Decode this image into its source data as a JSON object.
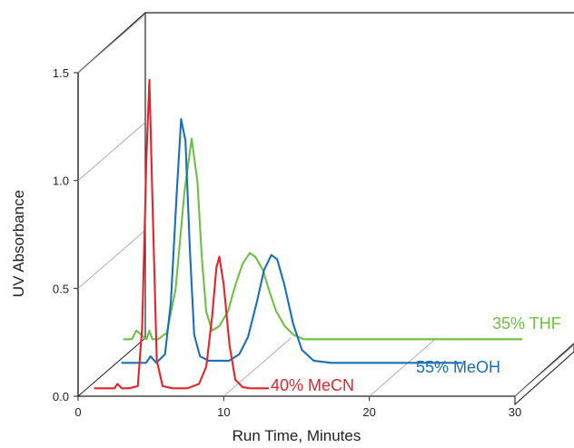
{
  "chart_data": {
    "type": "line",
    "subtype": "3d-offset-chromatograms",
    "xlabel": "Run Time, Minutes",
    "ylabel": "UV Absorbance",
    "xlim": [
      0,
      30
    ],
    "ylim": [
      0,
      1.5
    ],
    "xticks": [
      "0",
      "10",
      "20",
      "30"
    ],
    "yticks": [
      "0.0",
      "0.5",
      "1.0",
      "1.5"
    ],
    "grid": true,
    "series": [
      {
        "name": "40% MeCN",
        "color": "#e3242b",
        "x": [
          0.6,
          1.0,
          2.0,
          2.2,
          2.5,
          3.0,
          3.6,
          3.9,
          4.2,
          4.4,
          4.6,
          4.9,
          5.3,
          6.0,
          7.0,
          7.8,
          8.3,
          8.7,
          9.0,
          9.2,
          9.5,
          9.9,
          10.3,
          10.8,
          11.3,
          12.0,
          12.6
        ],
        "y": [
          0.02,
          0.02,
          0.02,
          0.04,
          0.02,
          0.02,
          0.03,
          0.3,
          1.1,
          1.45,
          0.9,
          0.15,
          0.03,
          0.02,
          0.02,
          0.04,
          0.12,
          0.35,
          0.58,
          0.63,
          0.5,
          0.22,
          0.06,
          0.025,
          0.02,
          0.02,
          0.02
        ]
      },
      {
        "name": "55% MeOH",
        "color": "#1a6fb6",
        "x": [
          0.6,
          1.5,
          2.3,
          2.6,
          3.0,
          3.6,
          4.0,
          4.4,
          4.7,
          5.0,
          5.3,
          5.6,
          6.0,
          6.6,
          7.3,
          8.0,
          8.7,
          9.3,
          9.9,
          10.4,
          10.9,
          11.3,
          11.8,
          12.4,
          13.0,
          13.8,
          15.0,
          17.0,
          20.0,
          23.0,
          24.0
        ],
        "y": [
          0.02,
          0.02,
          0.02,
          0.05,
          0.02,
          0.06,
          0.3,
          0.8,
          1.15,
          1.05,
          0.55,
          0.15,
          0.05,
          0.03,
          0.03,
          0.03,
          0.06,
          0.14,
          0.3,
          0.45,
          0.52,
          0.5,
          0.38,
          0.2,
          0.08,
          0.03,
          0.02,
          0.02,
          0.02,
          0.02,
          0.02
        ]
      },
      {
        "name": "35% THF",
        "color": "#6fbf44",
        "x": [
          0.6,
          1.2,
          1.5,
          2.2,
          2.4,
          2.6,
          3.0,
          3.6,
          4.2,
          4.8,
          5.3,
          5.7,
          6.0,
          6.3,
          6.7,
          7.2,
          7.8,
          8.3,
          8.8,
          9.3,
          9.7,
          10.2,
          10.6,
          11.1,
          11.7,
          12.3,
          13.0,
          14.0,
          16.0,
          20.0,
          25.0,
          28.0
        ],
        "y": [
          0.02,
          0.02,
          0.06,
          0.02,
          0.06,
          0.02,
          0.02,
          0.05,
          0.25,
          0.7,
          0.95,
          0.75,
          0.4,
          0.15,
          0.06,
          0.08,
          0.15,
          0.27,
          0.37,
          0.42,
          0.4,
          0.34,
          0.25,
          0.15,
          0.08,
          0.04,
          0.02,
          0.02,
          0.02,
          0.02,
          0.02,
          0.02
        ]
      }
    ]
  }
}
